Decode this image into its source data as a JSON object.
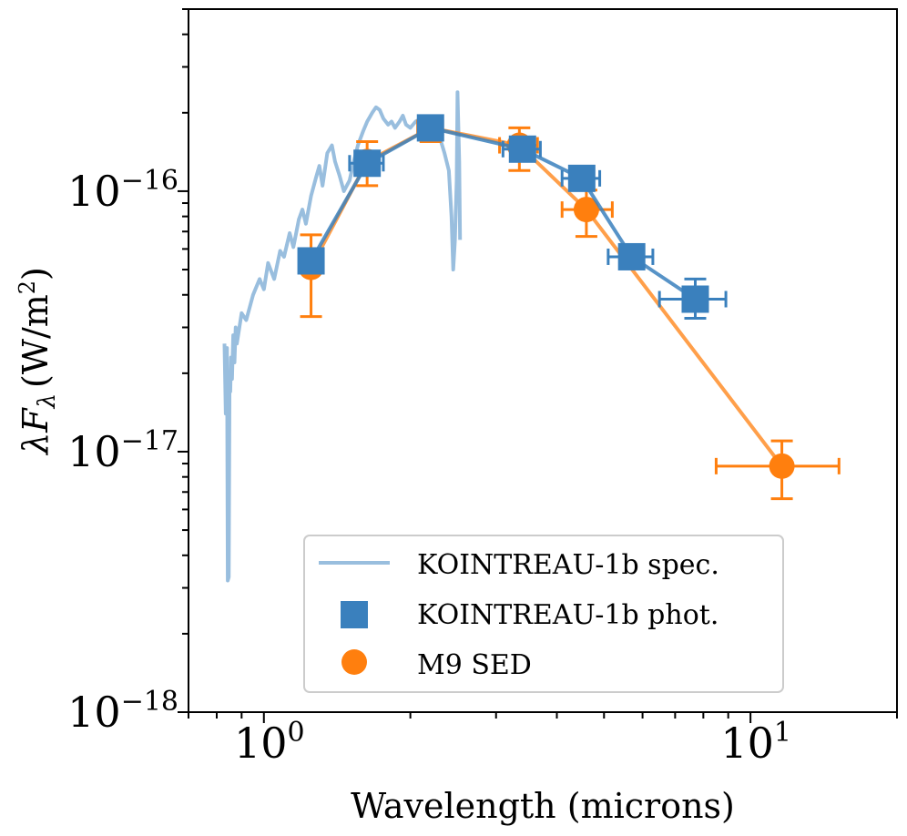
{
  "chart_data": {
    "type": "line",
    "title": "",
    "xlabel": "Wavelength (microns)",
    "ylabel": "λF_λ (W/m²)",
    "ylabel_parts": {
      "symbol": "λF",
      "subscript": "λ",
      "units": "(W/m",
      "units_sup": "2",
      "units_close": ")"
    },
    "xscale": "log",
    "yscale": "log",
    "xlim": [
      0.7,
      20
    ],
    "ylim": [
      1e-18,
      5e-16
    ],
    "x_ticks": [
      {
        "value": 1,
        "base": "10",
        "exp": "0"
      },
      {
        "value": 10,
        "base": "10",
        "exp": "1"
      }
    ],
    "y_ticks": [
      {
        "value": 1e-18,
        "base": "10",
        "exp": "−18"
      },
      {
        "value": 1e-17,
        "base": "10",
        "exp": "−17"
      },
      {
        "value": 1e-16,
        "base": "10",
        "exp": "−16"
      }
    ],
    "legend": {
      "position": "lower-right",
      "entries": [
        {
          "label": "KOINTREAU-1b spec.",
          "marker": "line",
          "color": "#99bede"
        },
        {
          "label": "KOINTREAU-1b phot.",
          "marker": "square",
          "color": "#3a80bd"
        },
        {
          "label": "M9 SED",
          "marker": "circle",
          "color": "#ff7f0e"
        }
      ]
    },
    "series": [
      {
        "name": "KOINTREAU-1b spec.",
        "color": "#99bede",
        "kind": "spectrum",
        "x": [
          0.83,
          0.835,
          0.84,
          0.843,
          0.847,
          0.85,
          0.853,
          0.856,
          0.86,
          0.865,
          0.87,
          0.875,
          0.88,
          0.9,
          0.92,
          0.95,
          0.98,
          1.0,
          1.02,
          1.05,
          1.08,
          1.1,
          1.13,
          1.15,
          1.18,
          1.2,
          1.22,
          1.25,
          1.28,
          1.3,
          1.32,
          1.35,
          1.38,
          1.4,
          1.43,
          1.46,
          1.5,
          1.53,
          1.56,
          1.6,
          1.63,
          1.67,
          1.7,
          1.73,
          1.76,
          1.8,
          1.83,
          1.86,
          1.9,
          1.93,
          1.96,
          2.0,
          2.05,
          2.1,
          2.15,
          2.2,
          2.25,
          2.3,
          2.35,
          2.4,
          2.43,
          2.45,
          2.47,
          2.49,
          2.5,
          2.52,
          2.53
        ],
        "y": [
          2.6e-17,
          1.4e-17,
          2.5e-17,
          3.2e-18,
          3.3e-18,
          2e-17,
          1.7e-17,
          2.3e-17,
          1.9e-17,
          2.8e-17,
          2.2e-17,
          3e-17,
          2.6e-17,
          3.4e-17,
          3.2e-17,
          4e-17,
          4.6e-17,
          4.2e-17,
          5.3e-17,
          4.6e-17,
          5.9e-17,
          5.6e-17,
          6.9e-17,
          6.1e-17,
          7.8e-17,
          8.5e-17,
          7.5e-17,
          9.6e-17,
          1.13e-16,
          1.25e-16,
          1.05e-16,
          1.4e-16,
          1.5e-16,
          1.3e-16,
          1.15e-16,
          1e-16,
          1.1e-16,
          1.3e-16,
          1.5e-16,
          1.7e-16,
          1.85e-16,
          2e-16,
          2.1e-16,
          2.05e-16,
          1.9e-16,
          1.8e-16,
          1.85e-16,
          1.75e-16,
          1.85e-16,
          1.95e-16,
          1.8e-16,
          1.75e-16,
          1.85e-16,
          1.9e-16,
          1.8e-16,
          1.85e-16,
          1.7e-16,
          1.6e-16,
          1.4e-16,
          1.2e-16,
          8e-17,
          5e-17,
          6.5e-17,
          1.1e-16,
          2.4e-16,
          1.3e-16,
          6.5e-17
        ]
      },
      {
        "name": "KOINTREAU-1b phot.",
        "color": "#3a80bd",
        "marker": "square",
        "points": [
          {
            "x": 1.25,
            "y": 5.4e-17,
            "xerr": [
              0,
              0
            ],
            "yerr": [
              0,
              0
            ]
          },
          {
            "x": 1.63,
            "y": 1.28e-16,
            "xerr": [
              0.13,
              0.13
            ],
            "yerr": [
              0,
              0
            ]
          },
          {
            "x": 2.2,
            "y": 1.75e-16,
            "xerr": [
              0,
              0
            ],
            "yerr": [
              0,
              0
            ]
          },
          {
            "x": 3.4,
            "y": 1.45e-16,
            "xerr": [
              0.3,
              0.3
            ],
            "yerr": [
              0,
              0
            ]
          },
          {
            "x": 4.5,
            "y": 1.12e-16,
            "xerr": [
              0.4,
              0.4
            ],
            "yerr": [
              0,
              0
            ]
          },
          {
            "x": 5.7,
            "y": 5.6e-17,
            "xerr": [
              0.6,
              0.6
            ],
            "yerr": [
              0,
              0
            ]
          },
          {
            "x": 7.7,
            "y": 3.85e-17,
            "xerr": [
              1.2,
              1.2
            ],
            "yerr": [
              6e-18,
              7.5e-18
            ]
          }
        ]
      },
      {
        "name": "M9 SED",
        "color": "#ff7f0e",
        "marker": "circle",
        "points": [
          {
            "x": 1.25,
            "y": 5.1e-17,
            "xerr": [
              0,
              0
            ],
            "yerr": [
              1.8e-17,
              1.7e-17
            ]
          },
          {
            "x": 1.63,
            "y": 1.3e-16,
            "xerr": [
              0,
              0
            ],
            "yerr": [
              2.5e-17,
              2.5e-17
            ]
          },
          {
            "x": 2.2,
            "y": 1.75e-16,
            "xerr": [
              0.13,
              0.13
            ],
            "yerr": [
              2e-17,
              2e-17
            ]
          },
          {
            "x": 3.35,
            "y": 1.5e-16,
            "xerr": [
              0.3,
              0.3
            ],
            "yerr": [
              3e-17,
              2.5e-17
            ]
          },
          {
            "x": 4.6,
            "y": 8.5e-17,
            "xerr": [
              0.5,
              0.6
            ],
            "yerr": [
              1.8e-17,
              1.6e-17
            ]
          },
          {
            "x": 11.6,
            "y": 8.8e-18,
            "xerr": [
              3.1,
              3.6
            ],
            "yerr": [
              2.2e-18,
              2.2e-18
            ]
          }
        ]
      }
    ]
  }
}
